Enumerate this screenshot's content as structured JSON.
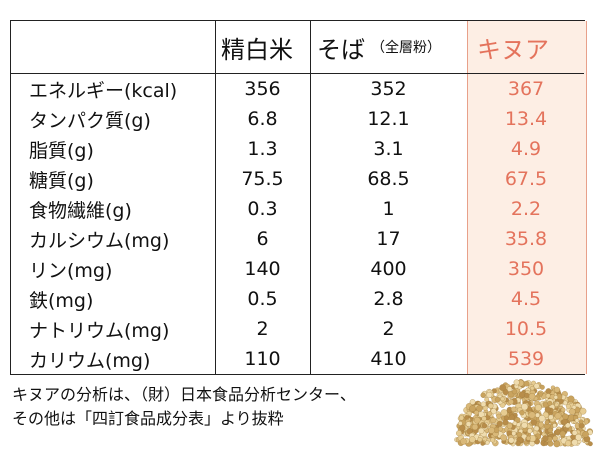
{
  "table": {
    "header": [
      "精白米",
      "そば",
      "キヌア"
    ],
    "header_note": "（全層粉）",
    "rows": [
      [
        "エネルギー(kcal)",
        "356",
        "352",
        "367"
      ],
      [
        "タンパク質(g)",
        "6.8",
        "12.1",
        "13.4"
      ],
      [
        "脂質(g)",
        "1.3",
        "3.1",
        "4.9"
      ],
      [
        "糖質(g)",
        "75.5",
        "68.5",
        "67.5"
      ],
      [
        "食物繊維(g)",
        "0.3",
        "1",
        "2.2"
      ],
      [
        "カルシウム(mg)",
        "6",
        "17",
        "35.8"
      ],
      [
        "リン(mg)",
        "140",
        "400",
        "350"
      ],
      [
        "鉄(mg)",
        "0.5",
        "2.8",
        "4.5"
      ],
      [
        "ナトリウム(mg)",
        "2",
        "2",
        "10.5"
      ],
      [
        "カリウム(mg)",
        "110",
        "410",
        "539"
      ]
    ]
  },
  "note": [
    "キヌアの分析は、（財）日本食品分析センター、",
    "その他は「四訂食品成分表」より抜粋"
  ]
}
